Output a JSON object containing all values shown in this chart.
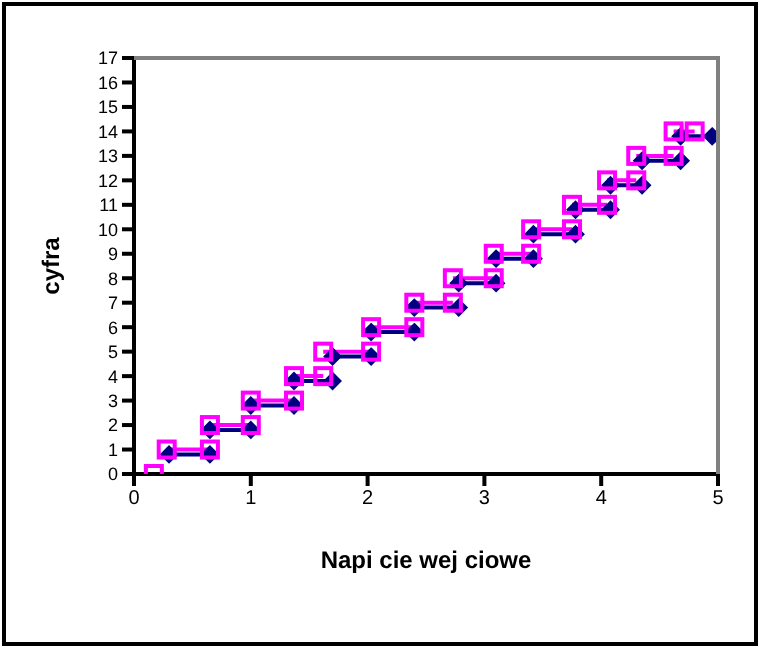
{
  "chart_data": {
    "type": "line",
    "xlabel": "Napi cie wej ciowe",
    "ylabel": "cyfra",
    "xlim": [
      0,
      5
    ],
    "xticks": [
      0,
      1,
      2,
      3,
      4,
      5
    ],
    "ylim": [
      0,
      17
    ],
    "yticks": [
      0,
      1,
      2,
      3,
      4,
      5,
      6,
      7,
      8,
      9,
      10,
      11,
      12,
      13,
      14,
      15,
      16,
      17
    ],
    "line_style": "solid",
    "series": [
      {
        "color": "#000080",
        "marker": "diamond",
        "x": [
          0.3,
          0.65,
          null,
          0.65,
          1.0,
          null,
          1.0,
          1.37,
          null,
          1.37,
          1.7,
          null,
          1.7,
          2.03,
          null,
          2.03,
          2.4,
          null,
          2.4,
          2.78,
          null,
          2.78,
          3.1,
          null,
          3.1,
          3.42,
          null,
          3.42,
          3.78,
          null,
          3.78,
          4.08,
          null,
          4.08,
          4.35,
          null,
          4.35,
          4.68,
          null,
          4.68,
          4.95
        ],
        "values": [
          0.8,
          0.8,
          null,
          1.8,
          1.8,
          null,
          2.8,
          2.8,
          null,
          3.8,
          3.8,
          null,
          4.8,
          4.8,
          null,
          5.8,
          5.8,
          null,
          6.8,
          6.8,
          null,
          7.8,
          7.8,
          null,
          8.8,
          8.8,
          null,
          9.8,
          9.8,
          null,
          10.8,
          10.8,
          null,
          11.8,
          11.8,
          null,
          12.8,
          12.8,
          null,
          13.8,
          13.8
        ]
      },
      {
        "color": "#ff00ff",
        "marker": "square",
        "x": [
          0.17,
          null,
          0.28,
          0.65,
          null,
          0.65,
          1.0,
          null,
          1.0,
          1.37,
          null,
          1.37,
          1.62,
          null,
          1.62,
          2.03,
          null,
          2.03,
          2.4,
          null,
          2.4,
          2.73,
          null,
          2.73,
          3.08,
          null,
          3.08,
          3.4,
          null,
          3.4,
          3.75,
          null,
          3.75,
          4.05,
          null,
          4.05,
          4.3,
          null,
          4.3,
          4.62,
          null,
          4.62,
          4.8
        ],
        "values": [
          0,
          null,
          1,
          1,
          null,
          2,
          2,
          null,
          3,
          3,
          null,
          4,
          4,
          null,
          5,
          5,
          null,
          6,
          6,
          null,
          7,
          7,
          null,
          8,
          8,
          null,
          9,
          9,
          null,
          10,
          10,
          null,
          11,
          11,
          null,
          12,
          12,
          null,
          13,
          13,
          null,
          14,
          14
        ]
      }
    ]
  }
}
